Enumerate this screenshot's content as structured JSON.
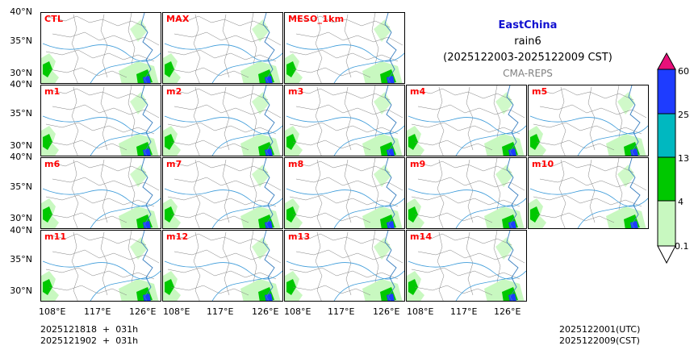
{
  "header": {
    "region": "EastChina",
    "variable": "rain6",
    "period": "(2025122003-2025122009 CST)",
    "source": "CMA-REPS"
  },
  "panels": [
    [
      "CTL",
      "MAX",
      "MESO_1km"
    ],
    [
      "m1",
      "m2",
      "m3",
      "m4",
      "m5"
    ],
    [
      "m6",
      "m7",
      "m8",
      "m9",
      "m10"
    ],
    [
      "m11",
      "m12",
      "m13",
      "m14"
    ]
  ],
  "axes": {
    "lat_ticks": [
      "40°N",
      "35°N",
      "30°N"
    ],
    "lon_ticks": [
      "108°E",
      "117°E",
      "126°E"
    ]
  },
  "colorbar": {
    "levels": [
      "0.1",
      "4",
      "13",
      "25",
      "60"
    ],
    "colors": [
      "#c8f8c0",
      "#00c800",
      "#00b8c0",
      "#1e3cff",
      "#e8107a"
    ]
  },
  "footer": {
    "init_line1": "2025121818  +  031h",
    "init_line2": "2025121902  +  031h",
    "valid_utc": "2025122001(UTC)",
    "valid_cst": "2025122009(CST)"
  }
}
